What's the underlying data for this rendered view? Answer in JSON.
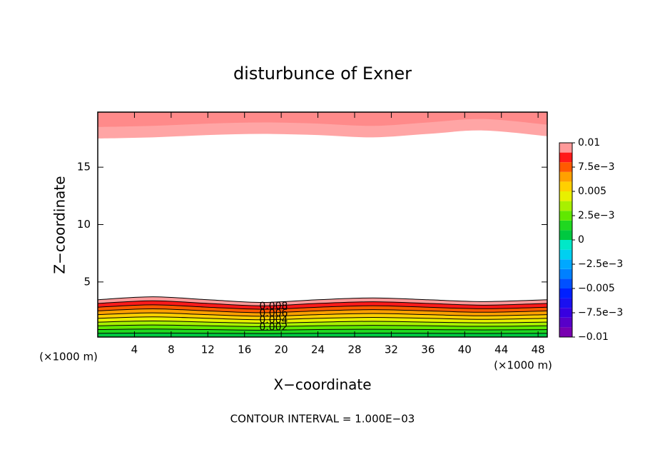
{
  "chart_data": {
    "type": "contour",
    "title": "disturbunce of Exner",
    "xlabel": "X−coordinate",
    "ylabel": "Z−coordinate",
    "x_unit": "(×1000 m)",
    "x_unit_right": "(×1000 m)",
    "footer": "CONTOUR INTERVAL = 1.000E−03",
    "xlim": [
      0,
      49
    ],
    "ylim": [
      0.2,
      19.8
    ],
    "xticks": [
      4,
      8,
      12,
      16,
      20,
      24,
      28,
      32,
      36,
      40,
      44,
      48
    ],
    "yticks": [
      5,
      10,
      15
    ],
    "x": [
      0,
      6,
      12,
      18,
      24,
      30,
      36,
      42,
      49
    ],
    "bottom_contours": [
      {
        "level": 0.001,
        "z": [
          0.53,
          0.55,
          0.53,
          0.5,
          0.53,
          0.54,
          0.53,
          0.51,
          0.53
        ]
      },
      {
        "level": 0.002,
        "z": [
          0.85,
          0.9,
          0.85,
          0.8,
          0.85,
          0.88,
          0.85,
          0.82,
          0.85
        ]
      },
      {
        "level": 0.003,
        "z": [
          1.18,
          1.25,
          1.18,
          1.11,
          1.18,
          1.22,
          1.18,
          1.13,
          1.18
        ]
      },
      {
        "level": 0.004,
        "z": [
          1.5,
          1.6,
          1.5,
          1.41,
          1.5,
          1.57,
          1.5,
          1.44,
          1.5
        ]
      },
      {
        "level": 0.005,
        "z": [
          1.83,
          1.96,
          1.83,
          1.71,
          1.83,
          1.91,
          1.83,
          1.74,
          1.83
        ]
      },
      {
        "level": 0.006,
        "z": [
          2.15,
          2.31,
          2.15,
          2.01,
          2.15,
          2.25,
          2.15,
          2.05,
          2.15
        ]
      },
      {
        "level": 0.007,
        "z": [
          2.48,
          2.66,
          2.48,
          2.32,
          2.48,
          2.59,
          2.48,
          2.36,
          2.48
        ]
      },
      {
        "level": 0.008,
        "z": [
          2.8,
          3.01,
          2.8,
          2.62,
          2.8,
          2.93,
          2.8,
          2.67,
          2.8
        ]
      },
      {
        "level": 0.009,
        "z": [
          3.13,
          3.36,
          3.13,
          2.92,
          3.13,
          3.27,
          3.13,
          2.98,
          3.13
        ]
      },
      {
        "level": 0.01,
        "z": [
          3.45,
          3.71,
          3.45,
          3.22,
          3.45,
          3.61,
          3.45,
          3.29,
          3.45
        ]
      }
    ],
    "top_bands": [
      {
        "color": "#ffa5a5",
        "z": [
          17.5,
          17.6,
          17.8,
          17.9,
          17.8,
          17.6,
          17.9,
          18.2,
          17.7
        ]
      },
      {
        "color": "#ff8a8a",
        "z": [
          18.5,
          18.6,
          18.8,
          18.9,
          18.8,
          18.6,
          18.9,
          19.2,
          18.7
        ]
      }
    ],
    "colorbar": {
      "clim": [
        -0.01,
        0.01
      ],
      "colors": [
        "#7800b0",
        "#5800c8",
        "#3800e0",
        "#1a10f0",
        "#0020ff",
        "#0050ff",
        "#0080ff",
        "#00a8ff",
        "#00d0f0",
        "#00e8c8",
        "#00c840",
        "#20d820",
        "#60e800",
        "#a8f000",
        "#e8f000",
        "#ffd000",
        "#ffa000",
        "#ff5a00",
        "#ff1a1a",
        "#ff9a9a"
      ],
      "ticks": [
        0.01,
        {
          "value": 0.0075,
          "label": "7.5e−3"
        },
        0.005,
        {
          "value": 0.0025,
          "label": "2.5e−3"
        },
        0,
        {
          "value": -0.0025,
          "label": "−2.5e−3"
        },
        {
          "value": -0.005,
          "label": "−0.005"
        },
        {
          "value": -0.0075,
          "label": "−7.5e−3"
        },
        {
          "value": -0.01,
          "label": "−0.01"
        }
      ]
    }
  }
}
